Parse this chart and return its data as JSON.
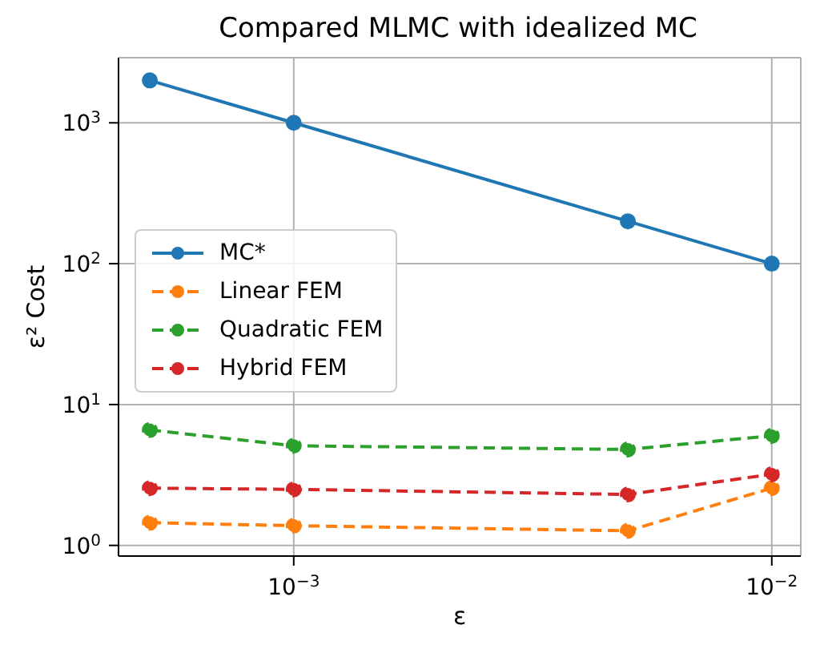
{
  "chart_data": {
    "type": "line",
    "title": "Compared MLMC with idealized MC",
    "xlabel": "ε",
    "ylabel": "ε² Cost",
    "x": [
      0.0005,
      0.001,
      0.005,
      0.01
    ],
    "series": [
      {
        "name": "MC*",
        "color": "#1f77b4",
        "line_style": "solid",
        "values": [
          2000,
          1000,
          200,
          100
        ]
      },
      {
        "name": "Linear FEM",
        "color": "#ff7f0e",
        "line_style": "dashed",
        "values": [
          1.45,
          1.38,
          1.27,
          2.55
        ]
      },
      {
        "name": "Quadratic FEM",
        "color": "#2ca02c",
        "line_style": "dashed",
        "values": [
          6.6,
          5.1,
          4.8,
          6.0
        ]
      },
      {
        "name": "Hybrid FEM",
        "color": "#d62728",
        "line_style": "dashed",
        "values": [
          2.55,
          2.5,
          2.3,
          3.2
        ]
      }
    ],
    "log": "xy",
    "xlim": [
      0.00043,
      0.0115
    ],
    "ylim": [
      0.84,
      2900
    ],
    "xticks": [
      {
        "value": 0.001,
        "label": "10$^{−3}$"
      },
      {
        "value": 0.01,
        "label": "10$^{−2}$"
      }
    ],
    "yticks": [
      {
        "value": 1,
        "label": "10$^{0}$"
      },
      {
        "value": 10,
        "label": "10$^{1}$"
      },
      {
        "value": 100,
        "label": "10$^{2}$"
      },
      {
        "value": 1000,
        "label": "10$^{3}$"
      }
    ],
    "grid": true,
    "legend": "center left",
    "marker": "circle"
  }
}
